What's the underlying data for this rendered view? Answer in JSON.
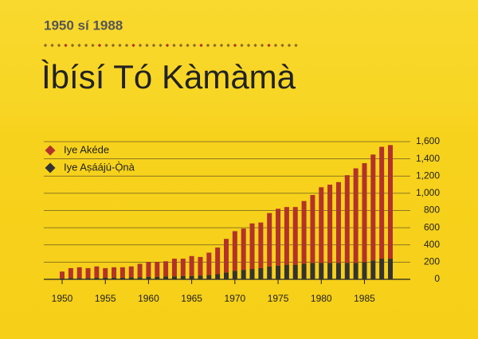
{
  "chart_data": {
    "type": "stacked_bar",
    "subtitle": "1950 sí 1988",
    "title": "Ìbísí Tó Kàmàmà",
    "x": [
      1950,
      1951,
      1952,
      1953,
      1954,
      1955,
      1956,
      1957,
      1958,
      1959,
      1960,
      1961,
      1962,
      1963,
      1964,
      1965,
      1966,
      1967,
      1968,
      1969,
      1970,
      1971,
      1972,
      1973,
      1974,
      1975,
      1976,
      1977,
      1978,
      1979,
      1980,
      1981,
      1982,
      1983,
      1984,
      1985,
      1986,
      1987,
      1988
    ],
    "xlim": [
      1950,
      1988
    ],
    "xticks": [
      1950,
      1955,
      1960,
      1965,
      1970,
      1975,
      1980,
      1985
    ],
    "series": [
      {
        "name": "Iye Aṣáájú-Ọ̀nà",
        "color": "#333333",
        "values": [
          10,
          15,
          15,
          15,
          20,
          20,
          20,
          20,
          25,
          25,
          30,
          30,
          35,
          35,
          40,
          40,
          45,
          50,
          60,
          80,
          100,
          110,
          120,
          130,
          150,
          160,
          170,
          170,
          180,
          190,
          190,
          190,
          190,
          190,
          190,
          200,
          220,
          240,
          240
        ]
      },
      {
        "name": "Iye Akéde",
        "color": "#b3322b",
        "values": [
          80,
          115,
          125,
          115,
          130,
          110,
          120,
          120,
          125,
          155,
          170,
          170,
          175,
          205,
          200,
          230,
          215,
          260,
          310,
          390,
          460,
          480,
          530,
          530,
          620,
          660,
          670,
          670,
          730,
          790,
          880,
          910,
          940,
          1020,
          1100,
          1150,
          1230,
          1300,
          1320
        ]
      }
    ],
    "ylim": [
      0,
      1600
    ],
    "yticks": [
      0,
      200,
      400,
      600,
      800,
      {
        "value": 1000,
        "label": "1,000"
      },
      {
        "value": 1200,
        "label": "1,200"
      },
      {
        "value": 1400,
        "label": "1,400"
      },
      {
        "value": 1600,
        "label": "1,600"
      }
    ],
    "grid": true,
    "legend": "top-left"
  }
}
